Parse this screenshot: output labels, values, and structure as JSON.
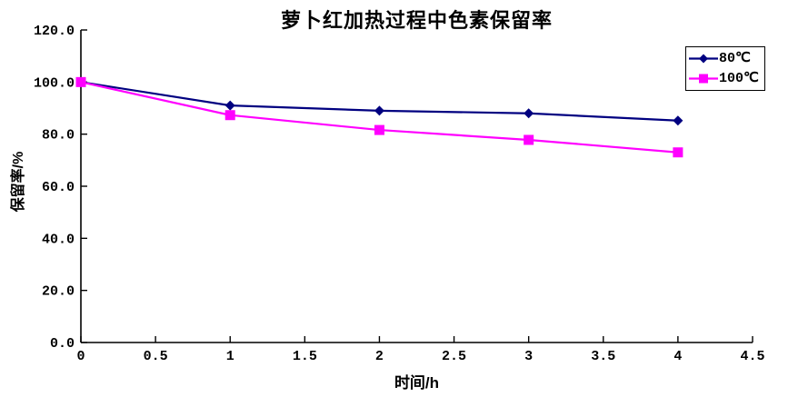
{
  "chart_data": {
    "type": "line",
    "title": "萝卜红加热过程中色素保留率",
    "xlabel": "时间/h",
    "ylabel": "保留率/%",
    "x": [
      0,
      1,
      2,
      3,
      4
    ],
    "series": [
      {
        "name": "80℃",
        "color": "#000080",
        "marker": "diamond",
        "values": [
          100.0,
          91.0,
          89.0,
          88.0,
          85.2
        ]
      },
      {
        "name": "100℃",
        "color": "#FF00FF",
        "marker": "square",
        "values": [
          100.0,
          87.3,
          81.6,
          77.8,
          73.0
        ]
      }
    ],
    "xlim": [
      0,
      4.5
    ],
    "ylim": [
      0,
      120
    ],
    "x_ticks": [
      0,
      0.5,
      1,
      1.5,
      2,
      2.5,
      3,
      3.5,
      4,
      4.5
    ],
    "x_tick_labels": [
      "0",
      "0.5",
      "1",
      "1.5",
      "2",
      "2.5",
      "3",
      "3.5",
      "4",
      "4.5"
    ],
    "y_ticks": [
      0,
      20,
      40,
      60,
      80,
      100,
      120
    ],
    "y_tick_labels": [
      "0.0",
      "20.0",
      "40.0",
      "60.0",
      "80.0",
      "100.0",
      "120.0"
    ],
    "grid": false,
    "legend_position": "top-right",
    "axis_color": "#000000",
    "background": "#FFFFFF"
  }
}
